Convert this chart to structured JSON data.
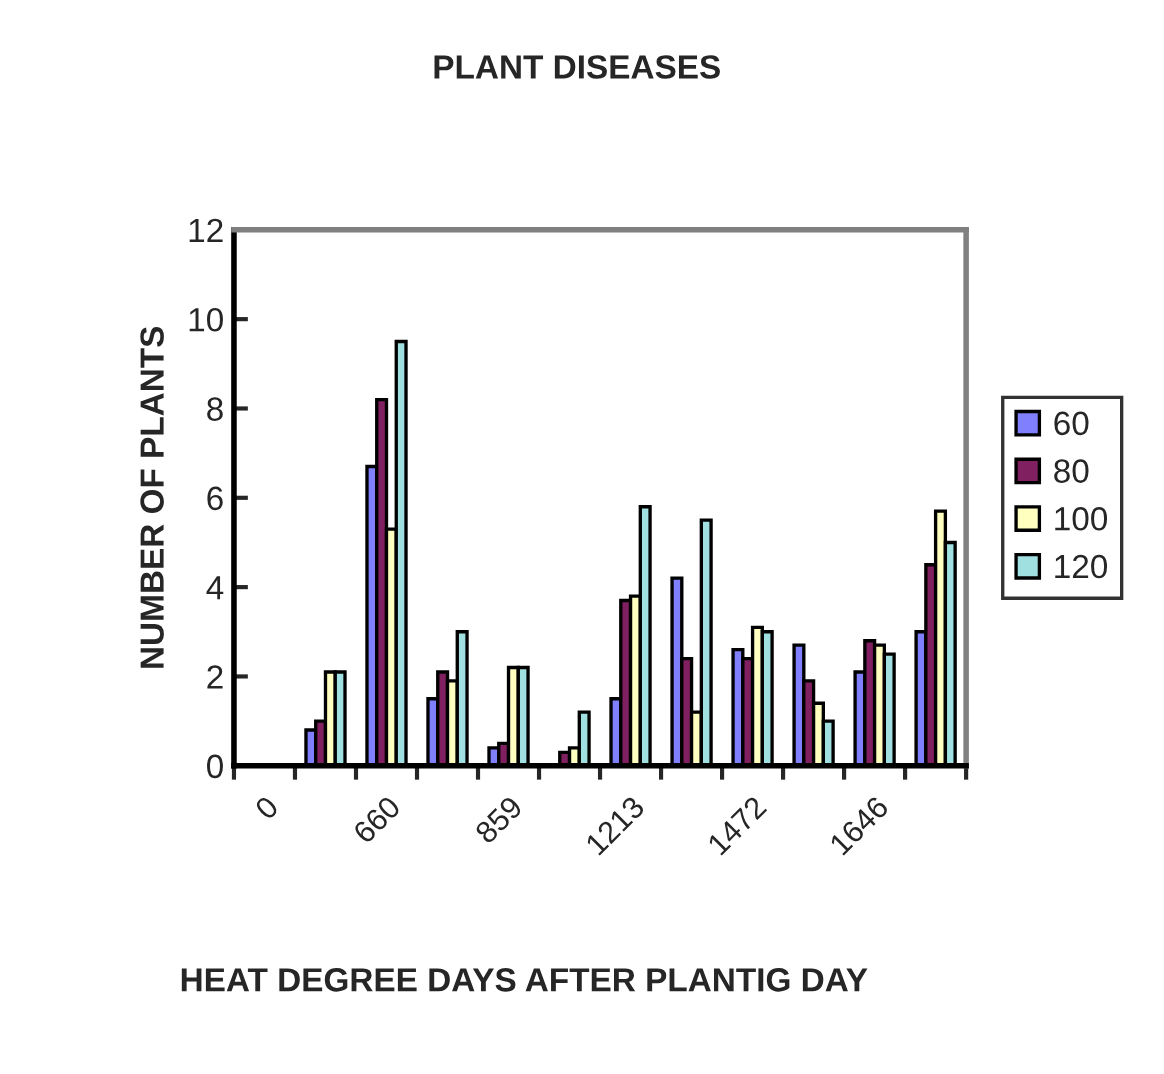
{
  "chart_data": {
    "type": "bar",
    "title": "PLANT DISEASES",
    "xlabel": "HEAT DEGREE DAYS AFTER PLANTIG DAY",
    "ylabel": "NUMBER OF PLANTS",
    "categories": [
      "0",
      null,
      "660",
      null,
      "859",
      null,
      "1213",
      null,
      "1472",
      null,
      "1646",
      null
    ],
    "series": [
      {
        "name": "60",
        "color": "#8080ff",
        "values": [
          null,
          0.8,
          6.7,
          1.5,
          0.4,
          null,
          1.5,
          4.2,
          2.6,
          2.7,
          2.1,
          3.0
        ]
      },
      {
        "name": "80",
        "color": "#802060",
        "values": [
          null,
          1.0,
          8.2,
          2.1,
          0.5,
          0.3,
          3.7,
          2.4,
          2.4,
          1.9,
          2.8,
          4.5
        ]
      },
      {
        "name": "100",
        "color": "#ffffc0",
        "values": [
          null,
          2.1,
          5.3,
          1.9,
          2.2,
          0.4,
          3.8,
          1.2,
          3.1,
          1.4,
          2.7,
          5.7
        ]
      },
      {
        "name": "120",
        "color": "#a0e0e0",
        "values": [
          null,
          2.1,
          9.5,
          3.0,
          2.2,
          1.2,
          5.8,
          5.5,
          3.0,
          1.0,
          2.5,
          5.0
        ]
      }
    ],
    "ylim": [
      0,
      12
    ],
    "yticks": [
      0,
      2,
      4,
      6,
      8,
      10,
      12
    ],
    "grid": false,
    "legend": "right"
  }
}
